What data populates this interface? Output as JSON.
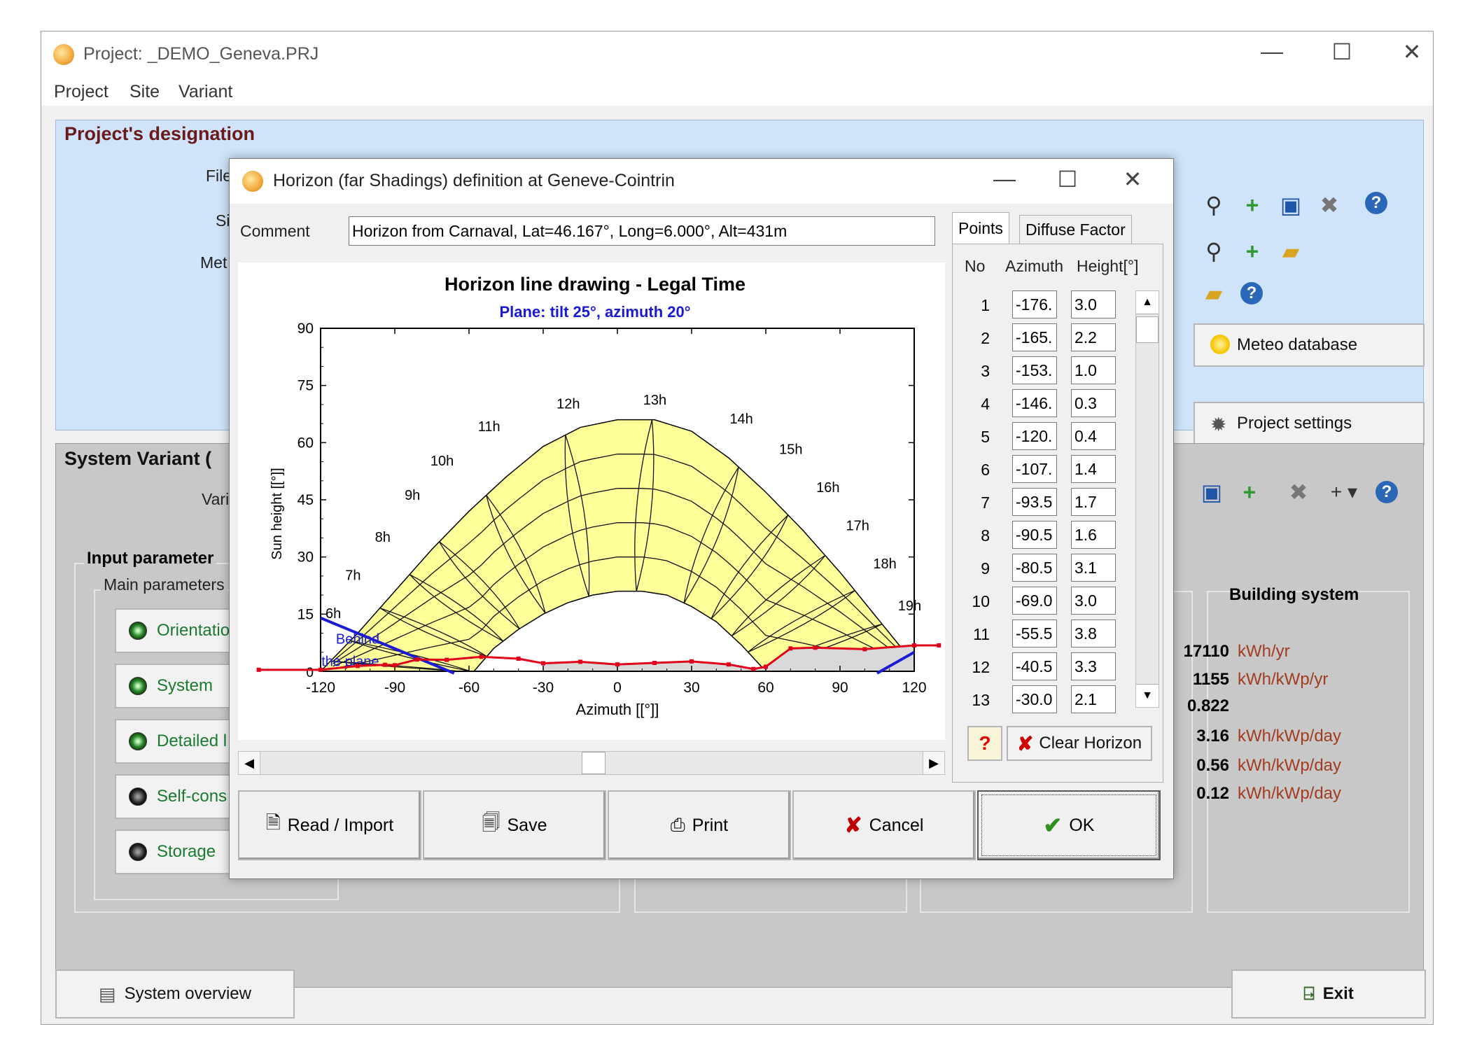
{
  "main_window": {
    "title": "Project:  _DEMO_Geneva.PRJ",
    "controls": {
      "minimize": "—",
      "maximize": "☐",
      "close": "✕"
    },
    "menu": [
      "Project",
      "Site",
      "Variant"
    ]
  },
  "project_designation": {
    "title": "Project's designation",
    "labels": {
      "file": "File",
      "site": "Si",
      "meteo": "Met"
    },
    "meteo_button": "Meteo database",
    "settings_button": "Project settings"
  },
  "system_variant": {
    "title": "System Variant (",
    "variant_label": "Vari",
    "input_parameters": "Input parameter",
    "main_parameters": "Main parameters",
    "buttons": [
      "Orientatio",
      "System",
      "Detailed l",
      "Self-cons",
      "Storage"
    ],
    "building_system": "Building system",
    "results": [
      {
        "value": "17110",
        "unit": "kWh/yr"
      },
      {
        "value": "1155",
        "unit": "kWh/kWp/yr"
      },
      {
        "value": "0.822",
        "unit": ""
      },
      {
        "value": "3.16",
        "unit": "kWh/kWp/day"
      },
      {
        "value": "0.56",
        "unit": "kWh/kWp/day"
      },
      {
        "value": "0.12",
        "unit": "kWh/kWp/day"
      }
    ],
    "overview_button": "System overview",
    "exit_button": "Exit"
  },
  "dialog": {
    "title": "Horizon (far Shadings) definition at Geneve-Cointrin",
    "controls": {
      "minimize": "—",
      "maximize": "☐",
      "close": "✕"
    },
    "comment_label": "Comment",
    "comment_value": "Horizon from Carnaval, Lat=46.167°, Long=6.000°, Alt=431m",
    "tabs": [
      "Points",
      "Diffuse Factor"
    ],
    "table_headers": {
      "no": "No",
      "azimuth": "Azimuth",
      "height": "Height[°]"
    },
    "points": [
      {
        "no": "1",
        "azimuth": "-176.",
        "height": "3.0"
      },
      {
        "no": "2",
        "azimuth": "-165.",
        "height": "2.2"
      },
      {
        "no": "3",
        "azimuth": "-153.",
        "height": "1.0"
      },
      {
        "no": "4",
        "azimuth": "-146.",
        "height": "0.3"
      },
      {
        "no": "5",
        "azimuth": "-120.",
        "height": "0.4"
      },
      {
        "no": "6",
        "azimuth": "-107.",
        "height": "1.4"
      },
      {
        "no": "7",
        "azimuth": "-93.5",
        "height": "1.7"
      },
      {
        "no": "8",
        "azimuth": "-90.5",
        "height": "1.6"
      },
      {
        "no": "9",
        "azimuth": "-80.5",
        "height": "3.1"
      },
      {
        "no": "10",
        "azimuth": "-69.0",
        "height": "3.0"
      },
      {
        "no": "11",
        "azimuth": "-55.5",
        "height": "3.8"
      },
      {
        "no": "12",
        "azimuth": "-40.5",
        "height": "3.3"
      },
      {
        "no": "13",
        "azimuth": "-30.0",
        "height": "2.1"
      }
    ],
    "help_button": "?",
    "clear_button": "Clear Horizon",
    "bottom_buttons": {
      "read": "Read / Import",
      "save": "Save",
      "print": "Print",
      "cancel": "Cancel",
      "ok": "OK"
    }
  },
  "chart_data": {
    "type": "line",
    "title": "Horizon line drawing - Legal Time",
    "subtitle": "Plane: tilt 25°, azimuth 20°",
    "xlabel": "Azimuth [[°]]",
    "ylabel": "Sun height [[°]]",
    "xlim": [
      -120,
      120
    ],
    "ylim": [
      0,
      90
    ],
    "xticks": [
      -120,
      -90,
      -60,
      -30,
      0,
      30,
      60,
      90,
      120
    ],
    "yticks": [
      15,
      30,
      45,
      60,
      75,
      90
    ],
    "hour_labels": [
      {
        "label": "6h",
        "az": -116,
        "h": 14
      },
      {
        "label": "7h",
        "az": -108,
        "h": 24
      },
      {
        "label": "8h",
        "az": -96,
        "h": 34
      },
      {
        "label": "9h",
        "az": -84,
        "h": 45
      },
      {
        "label": "10h",
        "az": -72,
        "h": 54
      },
      {
        "label": "11h",
        "az": -53,
        "h": 63
      },
      {
        "label": "12h",
        "az": -21,
        "h": 69
      },
      {
        "label": "13h",
        "az": 14,
        "h": 70
      },
      {
        "label": "14h",
        "az": 49,
        "h": 65
      },
      {
        "label": "15h",
        "az": 69,
        "h": 57
      },
      {
        "label": "16h",
        "az": 84,
        "h": 47
      },
      {
        "label": "17h",
        "az": 96,
        "h": 37
      },
      {
        "label": "18h",
        "az": 107,
        "h": 27
      },
      {
        "label": "19h",
        "az": 117,
        "h": 16
      }
    ],
    "behind_label": [
      "Behind",
      "the plane"
    ],
    "sun_path_summer": {
      "az": [
        -120,
        -105,
        -90,
        -75,
        -60,
        -45,
        -30,
        -15,
        0,
        15,
        30,
        45,
        60,
        75,
        90,
        105,
        120
      ],
      "h": [
        0,
        10,
        21,
        32,
        42,
        51,
        59,
        64,
        66,
        66,
        63,
        56,
        47,
        37,
        26,
        14,
        2
      ]
    },
    "sun_path_winter": {
      "az": [
        -58,
        -50,
        -40,
        -30,
        -20,
        -10,
        0,
        10,
        20,
        30,
        40,
        50,
        60
      ],
      "h": [
        0,
        6,
        11,
        15,
        18,
        20,
        21,
        21,
        20,
        17,
        13,
        7,
        0
      ]
    },
    "horizon_line": {
      "az": [
        -120,
        -105,
        -94,
        -90,
        -81,
        -69,
        -55,
        -40,
        -30,
        -15,
        0,
        15,
        30,
        45,
        55,
        60,
        70,
        80,
        100,
        120
      ],
      "h": [
        0.4,
        1.4,
        1.7,
        1.6,
        3.1,
        3.0,
        3.8,
        3.3,
        2.1,
        2.5,
        1.8,
        2.2,
        2.6,
        1.8,
        0.6,
        1.2,
        6.0,
        6.2,
        5.8,
        6.8
      ]
    },
    "colors": {
      "sun_area": "#ffff99",
      "horizon": "#e0001a",
      "behind": "#1c1cd6",
      "subtitle": "#1a1ad0"
    }
  }
}
